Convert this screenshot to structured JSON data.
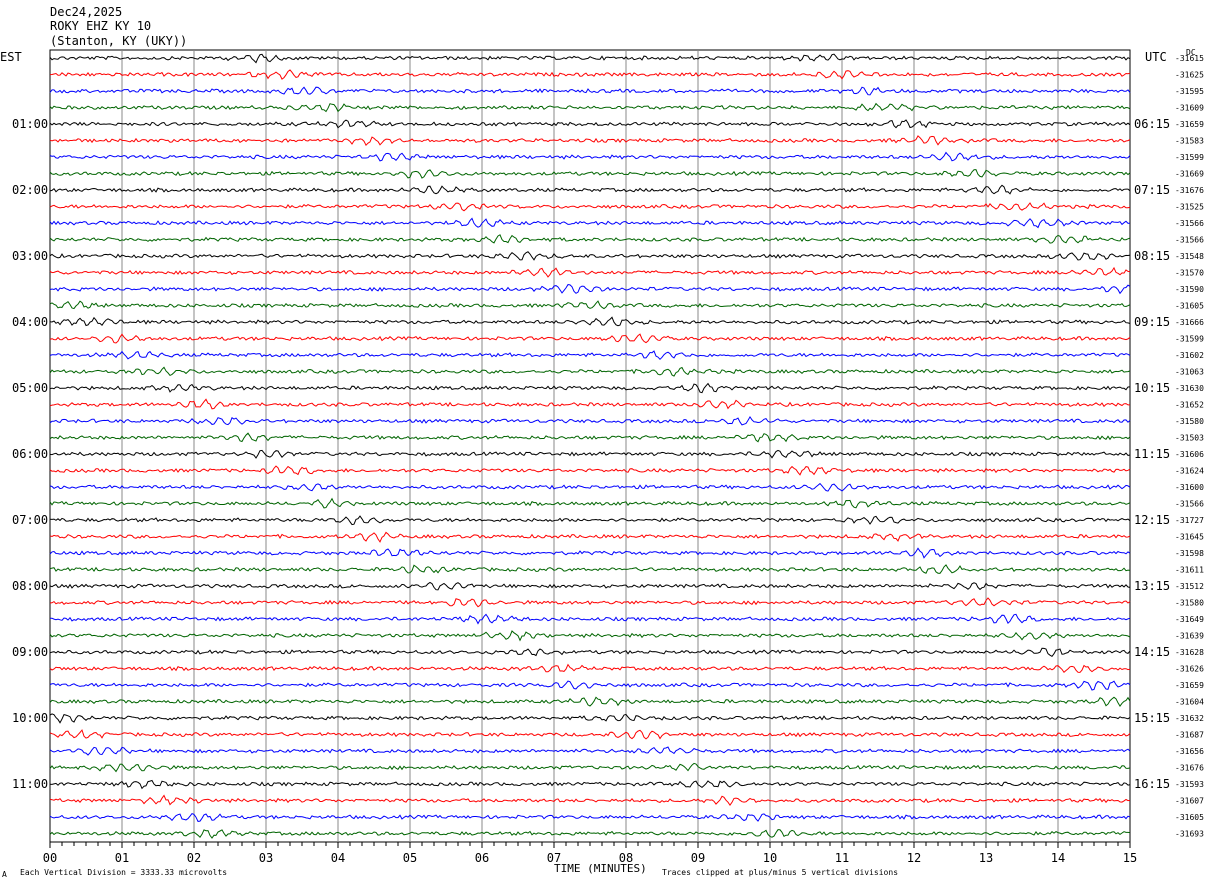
{
  "header": {
    "date": "Dec24,2025",
    "station": "ROKY EHZ KY 10",
    "location": "(Stanton, KY (UKY))"
  },
  "left_timezone": "EST",
  "right_timezone": "UTC",
  "dc_label": "DC",
  "footer": {
    "scale_note": "Each Vertical Division = 3333.33 microvolts",
    "clip_note": "Traces clipped at plus/minus 5 vertical divisions",
    "corner_mark": "A"
  },
  "chart_data": {
    "type": "line",
    "title": "",
    "xlabel": "TIME (MINUTES)",
    "ylabel": "",
    "x_ticks": [
      "00",
      "01",
      "02",
      "03",
      "04",
      "05",
      "06",
      "07",
      "08",
      "09",
      "10",
      "11",
      "12",
      "13",
      "14",
      "15"
    ],
    "xlim": [
      0,
      15
    ],
    "trace_colors": [
      "#000000",
      "#ff0000",
      "#0000ff",
      "#006400"
    ],
    "left_hour_labels": [
      "01:00",
      "02:00",
      "03:00",
      "04:00",
      "05:00",
      "06:00",
      "07:00",
      "08:00",
      "09:00",
      "10:00",
      "11:00"
    ],
    "right_hour_labels": [
      "06:15",
      "07:15",
      "08:15",
      "09:15",
      "10:15",
      "11:15",
      "12:15",
      "13:15",
      "14:15",
      "15:15",
      "16:15"
    ],
    "trace_offsets": [
      "-31615",
      "-31625",
      "-31595",
      "-31609",
      "-31659",
      "-31583",
      "-31599",
      "-31669",
      "-31676",
      "-31525",
      "-31566",
      "-31566",
      "-31548",
      "-31570",
      "-31590",
      "-31605",
      "-31666",
      "-31599",
      "-31602",
      "-31063",
      "-31630",
      "-31652",
      "-31580",
      "-31503",
      "-31606",
      "-31624",
      "-31600",
      "-31566",
      "-31727",
      "-31645",
      "-31598",
      "-31611",
      "-31512",
      "-31580",
      "-31649",
      "-31639",
      "-31628",
      "-31626",
      "-31659",
      "-31604",
      "-31632",
      "-31687",
      "-31656",
      "-31676",
      "-31593",
      "-31607",
      "-31605",
      "-31693"
    ],
    "traces_count": 48,
    "minutes_per_trace": 15
  }
}
